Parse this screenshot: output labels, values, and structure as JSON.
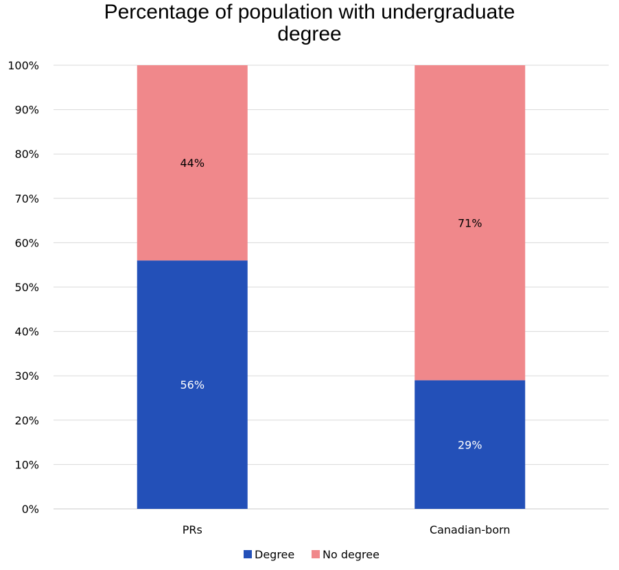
{
  "chart_data": {
    "type": "bar",
    "stacked": true,
    "title": "Percentage of population with undergraduate degree",
    "categories": [
      "PRs",
      "Canadian-born"
    ],
    "series": [
      {
        "name": "Degree",
        "values": [
          56,
          29
        ],
        "color": "#2350b8",
        "label_color": "#ffffff"
      },
      {
        "name": "No degree",
        "values": [
          44,
          71
        ],
        "color": "#f0888b",
        "label_color": "#000000"
      }
    ],
    "data_labels": [
      [
        "56%",
        "29%"
      ],
      [
        "44%",
        "71%"
      ]
    ],
    "y_ticks": [
      "0%",
      "10%",
      "20%",
      "30%",
      "40%",
      "50%",
      "60%",
      "70%",
      "80%",
      "90%",
      "100%"
    ],
    "ylim": [
      0,
      100
    ],
    "grid": true,
    "legend_position": "bottom"
  }
}
